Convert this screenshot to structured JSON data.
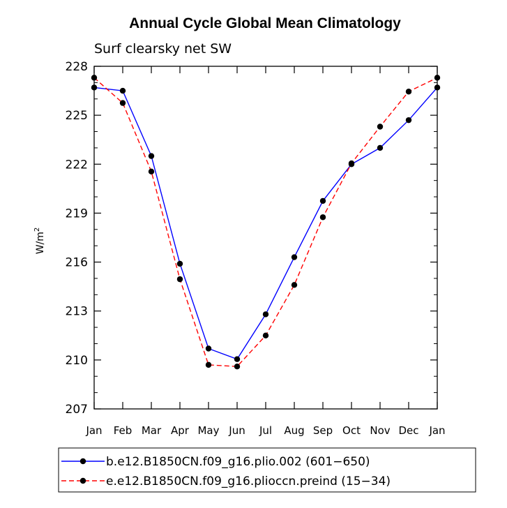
{
  "chart_data": {
    "type": "line",
    "title": "Annual Cycle Global Mean Climatology",
    "subtitle": "Surf clearsky net SW",
    "xlabel": "",
    "ylabel": "W/m",
    "ylabel_sup": "2",
    "categories": [
      "Jan",
      "Feb",
      "Mar",
      "Apr",
      "May",
      "Jun",
      "Jul",
      "Aug",
      "Sep",
      "Oct",
      "Nov",
      "Dec",
      "Jan"
    ],
    "ylim": [
      207,
      228
    ],
    "yticks": [
      207,
      210,
      213,
      216,
      219,
      222,
      225,
      228
    ],
    "grid": false,
    "legend_position": "bottom",
    "series": [
      {
        "name": "b.e12.B1850CN.f09_g16.plio.002 (601−650)",
        "color": "#0000ff",
        "dash": "solid",
        "values": [
          226.7,
          226.5,
          222.5,
          215.9,
          210.7,
          210.05,
          212.8,
          216.3,
          219.75,
          222.0,
          223.0,
          224.7,
          226.7
        ]
      },
      {
        "name": "e.e12.B1850CN.f09_g16.plioccn.preind (15−34)",
        "color": "#ff0000",
        "dash": "dashed",
        "values": [
          227.3,
          225.75,
          221.55,
          214.95,
          209.7,
          209.6,
          211.5,
          214.6,
          218.75,
          222.05,
          224.3,
          226.45,
          227.3
        ]
      }
    ]
  }
}
